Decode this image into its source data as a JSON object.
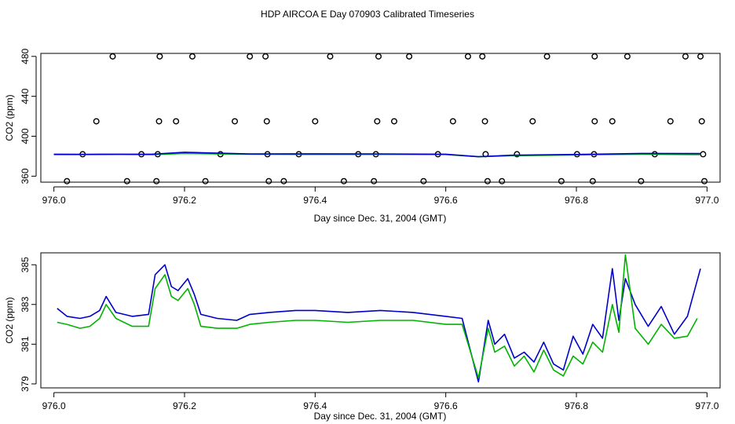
{
  "title": "HDP AIRCOA E  Day 070903  Calibrated Timeseries",
  "colors": {
    "blue": "#0000cc",
    "green": "#00b400",
    "black": "#000000"
  },
  "chart_data": [
    {
      "type": "scatter",
      "xlabel": "Day since Dec. 31, 2004 (GMT)",
      "ylabel": "CO2 (ppm)",
      "xlim": [
        975.98,
        977.02
      ],
      "ylim": [
        354,
        483
      ],
      "xticks": [
        "976.0",
        "976.2",
        "976.4",
        "976.6",
        "976.8",
        "977.0"
      ],
      "xtick_values": [
        976.0,
        976.2,
        976.4,
        976.6,
        976.8,
        977.0
      ],
      "yticks": [
        "360",
        "400",
        "440",
        "480"
      ],
      "ytick_values": [
        360,
        400,
        440,
        480
      ],
      "series": [
        {
          "color": "#000000",
          "x": [
            976.09,
            976.162,
            976.212,
            976.3,
            976.324,
            976.423,
            976.497,
            976.544,
            976.634,
            976.656,
            976.755,
            976.828,
            976.878,
            976.967,
            976.99
          ],
          "y": [
            480,
            480,
            480,
            480,
            480,
            480,
            480,
            480,
            480,
            480,
            480,
            480,
            480,
            480,
            480
          ]
        },
        {
          "color": "#000000",
          "x": [
            976.065,
            976.161,
            976.187,
            976.277,
            976.326,
            976.4,
            976.495,
            976.521,
            976.611,
            976.66,
            976.733,
            976.828,
            976.855,
            976.944,
            976.992
          ],
          "y": [
            415,
            415,
            415,
            415,
            415,
            415,
            415,
            415,
            415,
            415,
            415,
            415,
            415,
            415,
            415
          ]
        },
        {
          "color": "#000000",
          "x": [
            976.044,
            976.134,
            976.159,
            976.255,
            976.327,
            976.375,
            976.466,
            976.493,
            976.588,
            976.661,
            976.709,
            976.801,
            976.827,
            976.92,
            976.994
          ],
          "y": [
            382,
            382,
            382,
            382,
            382,
            382,
            382,
            382,
            382,
            382,
            382,
            382,
            382,
            382,
            382
          ]
        },
        {
          "color": "#000000",
          "x": [
            976.02,
            976.112,
            976.157,
            976.232,
            976.329,
            976.352,
            976.444,
            976.49,
            976.566,
            976.664,
            976.686,
            976.777,
            976.825,
            976.899,
            976.996
          ],
          "y": [
            355,
            355,
            355,
            355,
            355,
            355,
            355,
            355,
            355,
            355,
            355,
            355,
            355,
            355,
            355
          ]
        },
        {
          "type": "line",
          "color": "#00b400",
          "x": [
            976.0,
            976.05,
            976.1,
            976.15,
            976.2,
            976.3,
            976.4,
            976.5,
            976.6,
            976.65,
            976.7,
            976.8,
            976.9,
            976.99
          ],
          "y": [
            381.6,
            381.6,
            381.8,
            381.5,
            382.8,
            381.9,
            381.8,
            381.8,
            381.7,
            379.5,
            380.5,
            381.3,
            382.0,
            381.5
          ]
        },
        {
          "type": "line",
          "color": "#0000cc",
          "x": [
            976.0,
            976.05,
            976.1,
            976.15,
            976.2,
            976.3,
            976.4,
            976.5,
            976.6,
            976.65,
            976.7,
            976.8,
            976.9,
            976.99
          ],
          "y": [
            382.0,
            381.9,
            382.0,
            382.0,
            384.0,
            382.2,
            382.4,
            382.3,
            382.0,
            379.5,
            381.0,
            381.8,
            382.8,
            382.6
          ]
        }
      ]
    },
    {
      "type": "line",
      "xlabel": "Day since Dec. 31, 2004 (GMT)",
      "ylabel": "CO2 (ppm)",
      "xlim": [
        975.98,
        977.02
      ],
      "ylim": [
        378.8,
        385.6
      ],
      "xticks": [
        "976.0",
        "976.2",
        "976.4",
        "976.6",
        "976.8",
        "977.0"
      ],
      "xtick_values": [
        976.0,
        976.2,
        976.4,
        976.6,
        976.8,
        977.0
      ],
      "yticks": [
        "379",
        "381",
        "383",
        "385"
      ],
      "ytick_values": [
        379,
        381,
        383,
        385
      ],
      "series": [
        {
          "color": "#0000cc",
          "x": [
            976.005,
            976.02,
            976.04,
            976.055,
            976.07,
            976.08,
            976.095,
            976.12,
            976.145,
            976.155,
            976.17,
            976.18,
            976.19,
            976.205,
            976.215,
            976.225,
            976.25,
            976.28,
            976.3,
            976.33,
            976.37,
            976.4,
            976.45,
            976.5,
            976.55,
            976.6,
            976.625,
            976.65,
            976.665,
            976.675,
            976.69,
            976.705,
            976.72,
            976.735,
            976.75,
            976.765,
            976.78,
            976.795,
            976.81,
            976.825,
            976.84,
            976.855,
            976.865,
            976.875,
            976.89,
            976.91,
            976.93,
            976.95,
            976.97,
            976.99
          ],
          "y": [
            382.8,
            382.4,
            382.3,
            382.4,
            382.7,
            383.4,
            382.6,
            382.4,
            382.5,
            384.5,
            385.0,
            383.9,
            383.7,
            384.3,
            383.5,
            382.5,
            382.3,
            382.2,
            382.5,
            382.6,
            382.7,
            382.7,
            382.6,
            382.7,
            382.6,
            382.4,
            382.3,
            379.1,
            382.2,
            381.0,
            381.5,
            380.3,
            380.6,
            380.1,
            381.1,
            380.0,
            379.7,
            381.4,
            380.5,
            382.0,
            381.3,
            384.8,
            382.2,
            384.3,
            383.0,
            381.9,
            382.9,
            381.5,
            382.4,
            384.8
          ]
        },
        {
          "color": "#00b400",
          "x": [
            976.005,
            976.02,
            976.04,
            976.055,
            976.07,
            976.08,
            976.095,
            976.12,
            976.145,
            976.155,
            976.17,
            976.18,
            976.19,
            976.205,
            976.215,
            976.225,
            976.25,
            976.28,
            976.3,
            976.33,
            976.37,
            976.4,
            976.45,
            976.5,
            976.55,
            976.6,
            976.625,
            976.65,
            976.665,
            976.675,
            976.69,
            976.705,
            976.72,
            976.735,
            976.75,
            976.765,
            976.78,
            976.795,
            976.81,
            976.825,
            976.84,
            976.855,
            976.865,
            976.875,
            976.89,
            976.91,
            976.93,
            976.95,
            976.97,
            976.985
          ],
          "y": [
            382.1,
            382.0,
            381.8,
            381.9,
            382.3,
            383.0,
            382.3,
            381.9,
            381.9,
            383.8,
            384.5,
            383.4,
            383.2,
            383.8,
            383.0,
            381.9,
            381.8,
            381.8,
            382.0,
            382.1,
            382.2,
            382.2,
            382.1,
            382.2,
            382.2,
            382.0,
            382.0,
            379.3,
            381.8,
            380.6,
            380.9,
            379.9,
            380.4,
            379.6,
            380.7,
            379.7,
            379.4,
            380.4,
            380.0,
            381.1,
            380.6,
            383.0,
            381.6,
            385.5,
            381.8,
            381.0,
            382.0,
            381.3,
            381.4,
            382.3
          ]
        }
      ]
    }
  ]
}
